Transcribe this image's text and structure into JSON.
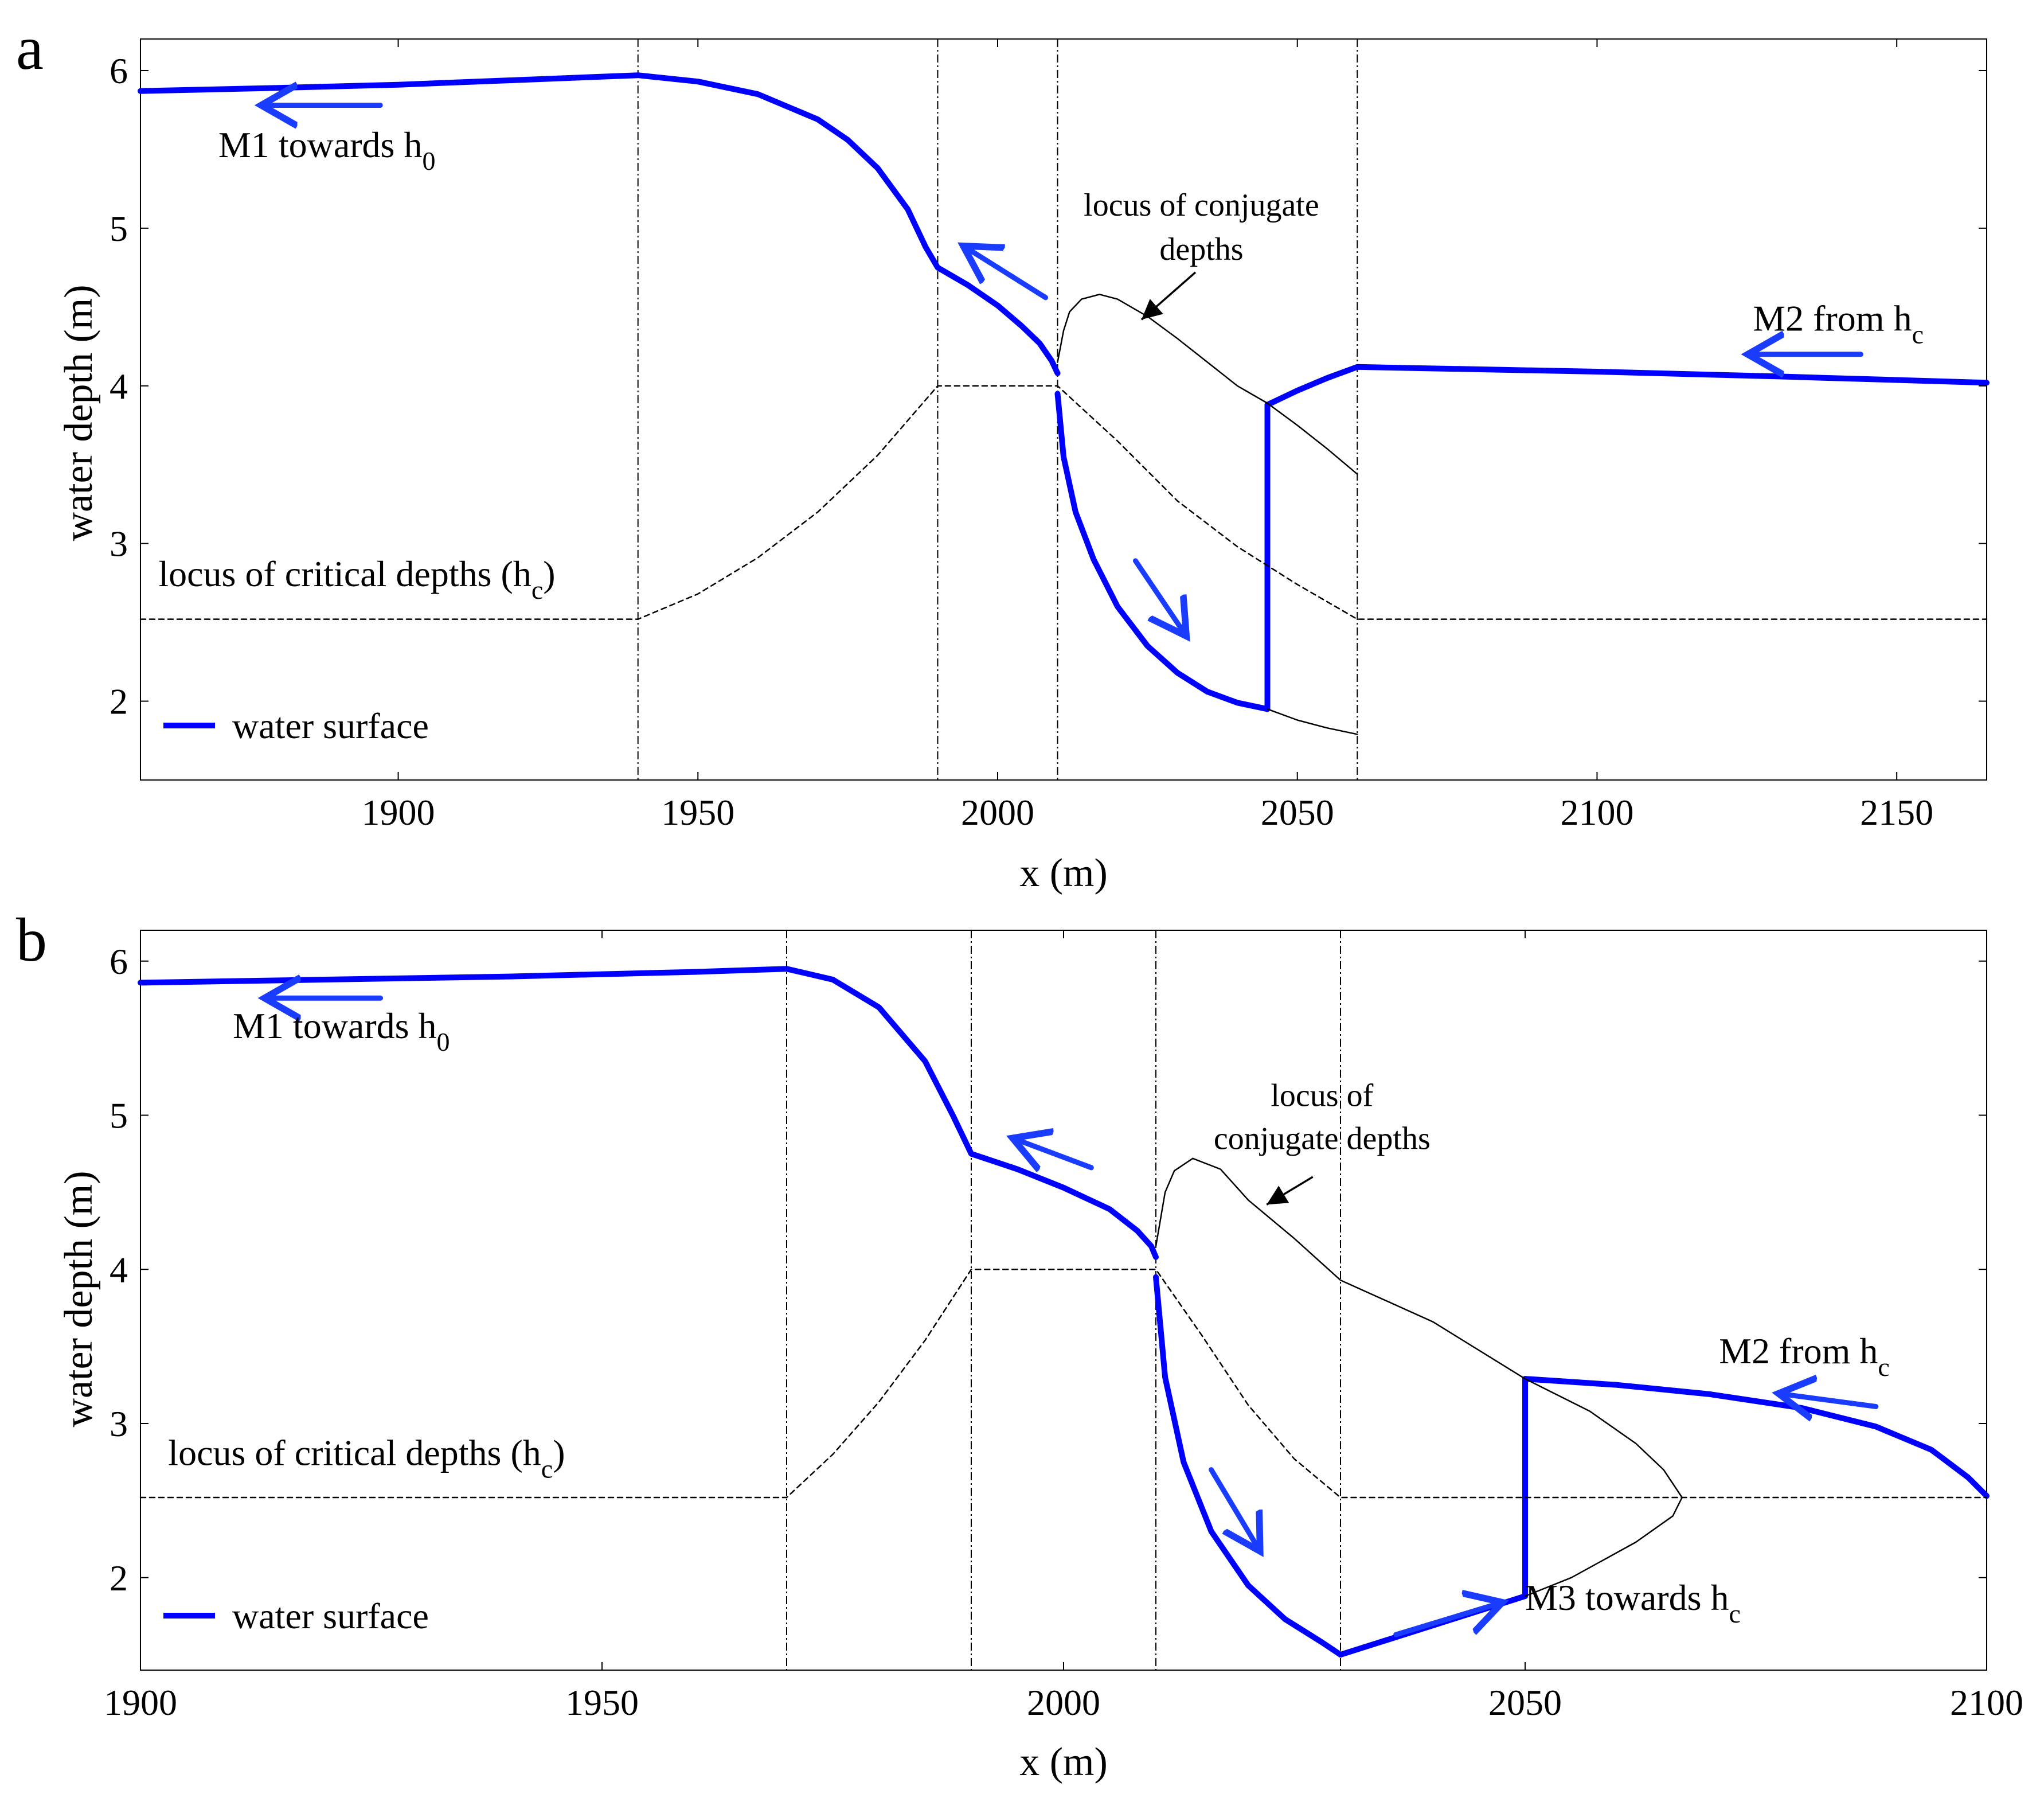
{
  "chart_data": [
    {
      "panel_label": "a",
      "type": "line",
      "xlabel": "x (m)",
      "ylabel": "water depth (m)",
      "xlim": [
        1857,
        2165
      ],
      "ylim": [
        1.5,
        6.2
      ],
      "xticks": [
        1900,
        1950,
        2000,
        2050,
        2100,
        2150
      ],
      "yticks": [
        2,
        3,
        4,
        5,
        6
      ],
      "grid": false,
      "legend": {
        "label": "water surface",
        "position": "bottom-left",
        "color": "#0000ff"
      },
      "vlines": [
        1940,
        1990,
        2010,
        2060
      ],
      "series": [
        {
          "name": "water surface upstream",
          "role": "surface",
          "color": "#0000ff",
          "x": [
            1857,
            1880,
            1900,
            1920,
            1940,
            1950,
            1960,
            1970,
            1975,
            1980,
            1985,
            1988,
            1990,
            1995,
            2000,
            2004,
            2007,
            2009,
            2010
          ],
          "y": [
            5.87,
            5.89,
            5.91,
            5.94,
            5.97,
            5.93,
            5.85,
            5.69,
            5.56,
            5.38,
            5.12,
            4.88,
            4.75,
            4.64,
            4.51,
            4.38,
            4.27,
            4.16,
            4.08
          ]
        },
        {
          "name": "water surface supercritical",
          "role": "surface",
          "color": "#0000ff",
          "x": [
            2010,
            2011,
            2013,
            2016,
            2020,
            2025,
            2030,
            2035,
            2040,
            2045
          ],
          "y": [
            3.95,
            3.55,
            3.2,
            2.9,
            2.6,
            2.35,
            2.18,
            2.06,
            1.99,
            1.95
          ]
        },
        {
          "name": "hydraulic jump",
          "role": "surface",
          "color": "#0000ff",
          "x": [
            2045,
            2045
          ],
          "y": [
            1.95,
            3.88
          ]
        },
        {
          "name": "water surface downstream",
          "role": "surface",
          "color": "#0000ff",
          "x": [
            2045,
            2050,
            2055,
            2060,
            2100,
            2130,
            2165
          ],
          "y": [
            3.88,
            3.97,
            4.05,
            4.12,
            4.09,
            4.06,
            4.02
          ]
        },
        {
          "name": "locus of conjugate depths",
          "role": "thin",
          "color": "#000000",
          "x": [
            2010,
            2011,
            2012,
            2014,
            2017,
            2020,
            2025,
            2030,
            2035,
            2040,
            2045,
            2050,
            2055,
            2060
          ],
          "y": [
            4.15,
            4.35,
            4.47,
            4.55,
            4.58,
            4.55,
            4.44,
            4.3,
            4.15,
            4.0,
            3.89,
            3.75,
            3.6,
            3.44
          ]
        },
        {
          "name": "conjugate lower branch",
          "role": "thin",
          "color": "#000000",
          "x": [
            2045,
            2050,
            2055,
            2060
          ],
          "y": [
            1.95,
            1.88,
            1.83,
            1.79
          ]
        },
        {
          "name": "locus of critical depths",
          "role": "dashed",
          "color": "#000000",
          "x": [
            1857,
            1940,
            1950,
            1960,
            1970,
            1980,
            1990,
            2010,
            2020,
            2030,
            2040,
            2050,
            2060,
            2165
          ],
          "y": [
            2.52,
            2.52,
            2.68,
            2.91,
            3.2,
            3.56,
            4.0,
            4.0,
            3.65,
            3.27,
            2.98,
            2.74,
            2.52,
            2.52
          ]
        }
      ],
      "arrows": [
        {
          "from": [
            1897,
            5.78
          ],
          "to": [
            1878,
            5.78
          ]
        },
        {
          "from": [
            2008,
            4.56
          ],
          "to": [
            1995,
            4.87
          ]
        },
        {
          "from": [
            2023,
            2.89
          ],
          "to": [
            2031,
            2.44
          ]
        },
        {
          "from": [
            2144,
            4.2
          ],
          "to": [
            2126,
            4.2
          ]
        }
      ],
      "annotations": [
        {
          "text": "M1 towards h",
          "sub": "0",
          "x": 1870,
          "y": 5.45,
          "size": "ann"
        },
        {
          "text": "locus of conjugate",
          "x": 2034,
          "y": 5.08,
          "size": "annsmall",
          "anchor": "middle"
        },
        {
          "text": "depths",
          "x": 2034,
          "y": 4.8,
          "size": "annsmall",
          "anchor": "middle"
        },
        {
          "text": "M2 from h",
          "sub": "c",
          "x": 2126,
          "y": 4.35,
          "size": "ann"
        },
        {
          "text": "locus of critical depths (h",
          "sub": "c",
          "tail": ")",
          "x": 1860,
          "y": 2.73,
          "size": "ann"
        }
      ],
      "pointer": {
        "from": [
          2033,
          4.72
        ],
        "to": [
          2024,
          4.42
        ]
      }
    },
    {
      "panel_label": "b",
      "type": "line",
      "xlabel": "x (m)",
      "ylabel": "water depth (m)",
      "xlim": [
        1900,
        2100
      ],
      "ylim": [
        1.4,
        6.2
      ],
      "xticks": [
        1900,
        1950,
        2000,
        2050,
        2100
      ],
      "yticks": [
        2,
        3,
        4,
        5,
        6
      ],
      "grid": false,
      "legend": {
        "label": "water surface",
        "position": "bottom-left",
        "color": "#0000ff"
      },
      "vlines": [
        1970,
        1990,
        2010,
        2030
      ],
      "series": [
        {
          "name": "water surface upstream",
          "role": "surface",
          "color": "#0000ff",
          "x": [
            1900,
            1920,
            1940,
            1960,
            1970,
            1975,
            1980,
            1985,
            1988,
            1990,
            1995,
            2000,
            2005,
            2008,
            2009.5,
            2010
          ],
          "y": [
            5.86,
            5.88,
            5.9,
            5.93,
            5.95,
            5.88,
            5.7,
            5.35,
            5.0,
            4.75,
            4.65,
            4.53,
            4.39,
            4.25,
            4.15,
            4.08
          ]
        },
        {
          "name": "water surface supercritical",
          "role": "surface",
          "color": "#0000ff",
          "x": [
            2010,
            2011,
            2013,
            2016,
            2020,
            2024,
            2028,
            2030
          ],
          "y": [
            3.95,
            3.3,
            2.75,
            2.3,
            1.95,
            1.73,
            1.58,
            1.5
          ]
        },
        {
          "name": "M3 segment",
          "role": "surface",
          "color": "#0000ff",
          "x": [
            2030,
            2040,
            2050
          ],
          "y": [
            1.5,
            1.69,
            1.88
          ]
        },
        {
          "name": "hydraulic jump",
          "role": "surface",
          "color": "#0000ff",
          "x": [
            2050,
            2050
          ],
          "y": [
            1.88,
            3.29
          ]
        },
        {
          "name": "water surface downstream",
          "role": "surface",
          "color": "#0000ff",
          "x": [
            2050,
            2060,
            2070,
            2080,
            2088,
            2094,
            2098,
            2100
          ],
          "y": [
            3.29,
            3.25,
            3.19,
            3.1,
            2.98,
            2.83,
            2.65,
            2.53
          ]
        },
        {
          "name": "locus of conjugate depths",
          "role": "thin",
          "color": "#000000",
          "x": [
            2010,
            2011,
            2012,
            2014,
            2017,
            2020,
            2025,
            2030,
            2040,
            2050,
            2057,
            2062,
            2065,
            2067,
            2066,
            2062,
            2055,
            2050
          ],
          "y": [
            4.15,
            4.5,
            4.64,
            4.72,
            4.65,
            4.45,
            4.2,
            3.93,
            3.66,
            3.29,
            3.08,
            2.87,
            2.7,
            2.52,
            2.4,
            2.23,
            2.0,
            1.88
          ]
        },
        {
          "name": "locus of critical depths",
          "role": "dashed",
          "color": "#000000",
          "x": [
            1900,
            1970,
            1975,
            1980,
            1985,
            1990,
            2010,
            2015,
            2020,
            2025,
            2030,
            2100
          ],
          "y": [
            2.52,
            2.52,
            2.8,
            3.14,
            3.54,
            4.0,
            4.0,
            3.57,
            3.12,
            2.77,
            2.52,
            2.52
          ]
        }
      ],
      "arrows": [
        {
          "from": [
            1926,
            5.76
          ],
          "to": [
            1914,
            5.76
          ]
        },
        {
          "from": [
            2003,
            4.66
          ],
          "to": [
            1995,
            4.84
          ]
        },
        {
          "from": [
            2016,
            2.7
          ],
          "to": [
            2021,
            2.2
          ]
        },
        {
          "from": [
            2036,
            1.63
          ],
          "to": [
            2047,
            1.83
          ]
        },
        {
          "from": [
            2088,
            3.11
          ],
          "to": [
            2078,
            3.19
          ]
        }
      ],
      "annotations": [
        {
          "text": "M1 towards h",
          "sub": "0",
          "x": 1910,
          "y": 5.5,
          "size": "ann"
        },
        {
          "text": "locus of",
          "x": 2028,
          "y": 5.06,
          "size": "annsmall",
          "anchor": "middle"
        },
        {
          "text": "conjugate depths",
          "x": 2028,
          "y": 4.78,
          "size": "annsmall",
          "anchor": "middle"
        },
        {
          "text": "M2 from h",
          "sub": "c",
          "x": 2071,
          "y": 3.39,
          "size": "ann"
        },
        {
          "text": "M3 towards h",
          "sub": "c",
          "x": 2050,
          "y": 1.79,
          "size": "ann"
        },
        {
          "text": "locus of critical depths (h",
          "sub": "c",
          "tail": ")",
          "x": 1903,
          "y": 2.73,
          "size": "ann"
        }
      ],
      "pointer": {
        "from": [
          2027,
          4.6
        ],
        "to": [
          2022,
          4.42
        ]
      }
    }
  ]
}
